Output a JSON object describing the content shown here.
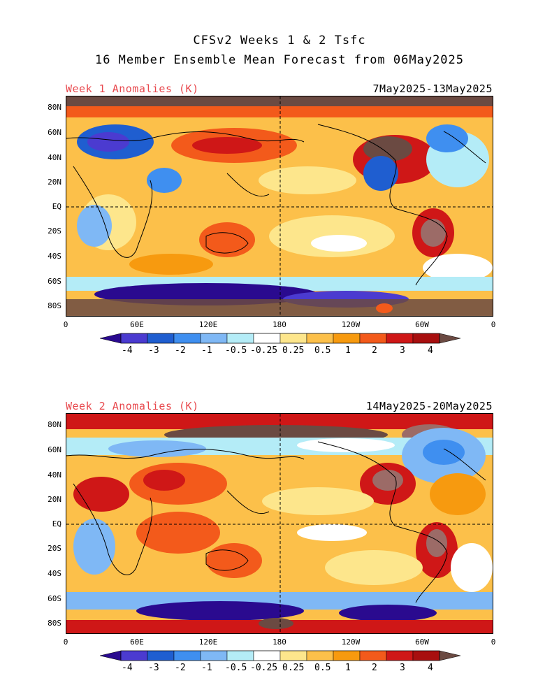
{
  "title_line1": "CFSv2 Weeks 1 & 2 Tsfc",
  "title_line2": "16 Member Ensemble Mean Forecast from 06May2025",
  "panels": [
    {
      "label": "Week 1 Anomalies (K)",
      "dates": "7May2025-13May2025"
    },
    {
      "label": "Week 2 Anomalies (K)",
      "dates": "14May2025-20May2025"
    }
  ],
  "lat_labels": [
    "80N",
    "60N",
    "40N",
    "20N",
    "EQ",
    "20S",
    "40S",
    "60S",
    "80S"
  ],
  "lon_labels": [
    "0",
    "60E",
    "120E",
    "180",
    "120W",
    "60W",
    "0"
  ],
  "colorbar": {
    "labels": [
      "-4",
      "-3",
      "-2",
      "-1",
      "-0.5",
      "-0.25",
      "0.25",
      "0.5",
      "1",
      "2",
      "3",
      "4"
    ],
    "colors": [
      "#2a0a8f",
      "#4b3bd0",
      "#1f5ed0",
      "#3f8ff0",
      "#7fb8f5",
      "#b4ecf7",
      "#ffffff",
      "#fde68c",
      "#fcc04a",
      "#f79a0f",
      "#f35a1b",
      "#cf1717",
      "#a80f0f",
      "#9c6b67",
      "#6b4a42"
    ]
  }
}
